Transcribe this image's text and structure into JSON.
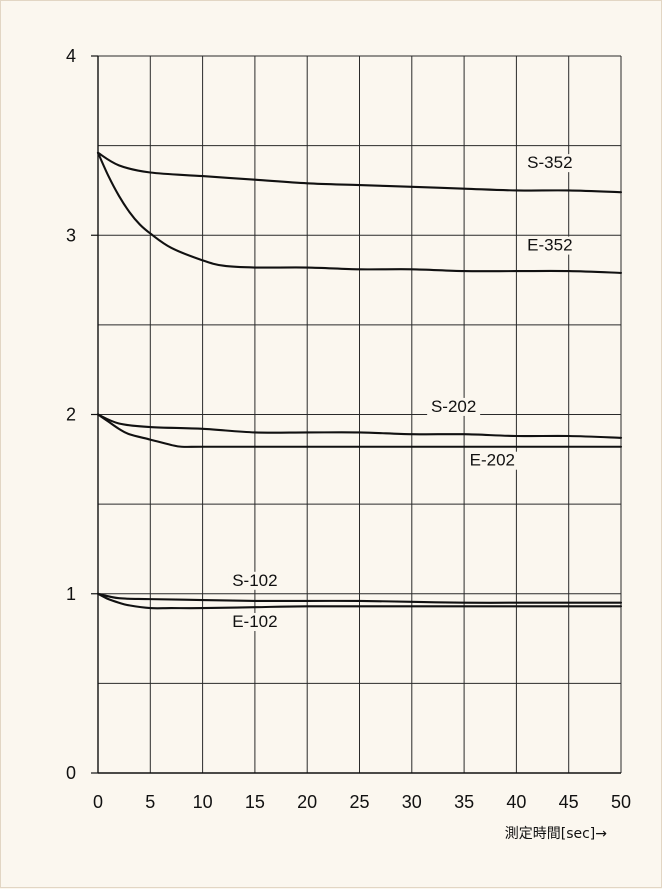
{
  "chart_data": {
    "type": "line",
    "title": "",
    "xlabel": "測定時間[sec]→",
    "ylabel": "",
    "xlim": [
      0,
      50
    ],
    "ylim": [
      0,
      4
    ],
    "x_ticks": [
      "0",
      "5",
      "10",
      "15",
      "20",
      "25",
      "30",
      "35",
      "40",
      "45",
      "50"
    ],
    "y_ticks": [
      "0",
      "1",
      "2",
      "3",
      "4"
    ],
    "grid": true,
    "series": [
      {
        "name": "S-352",
        "x": [
          0,
          2,
          5,
          10,
          15,
          20,
          25,
          30,
          35,
          40,
          45,
          50
        ],
        "y": [
          3.46,
          3.39,
          3.35,
          3.33,
          3.31,
          3.29,
          3.28,
          3.27,
          3.26,
          3.25,
          3.25,
          3.24
        ]
      },
      {
        "name": "E-352",
        "x": [
          0,
          1,
          2,
          3,
          4,
          5,
          7,
          10,
          12,
          15,
          20,
          25,
          30,
          35,
          40,
          45,
          50
        ],
        "y": [
          3.46,
          3.33,
          3.22,
          3.13,
          3.06,
          3.01,
          2.93,
          2.86,
          2.83,
          2.82,
          2.82,
          2.81,
          2.81,
          2.8,
          2.8,
          2.8,
          2.79
        ]
      },
      {
        "name": "S-202",
        "x": [
          0,
          2,
          5,
          10,
          15,
          20,
          25,
          30,
          35,
          40,
          45,
          50
        ],
        "y": [
          2.0,
          1.95,
          1.93,
          1.92,
          1.9,
          1.9,
          1.9,
          1.89,
          1.89,
          1.88,
          1.88,
          1.87
        ]
      },
      {
        "name": "E-202",
        "x": [
          0,
          1,
          2,
          3,
          5,
          7,
          8,
          10,
          15,
          20,
          30,
          40,
          50
        ],
        "y": [
          2.0,
          1.96,
          1.92,
          1.89,
          1.86,
          1.83,
          1.82,
          1.82,
          1.82,
          1.82,
          1.82,
          1.82,
          1.82
        ]
      },
      {
        "name": "S-102",
        "x": [
          0,
          2,
          5,
          10,
          15,
          20,
          25,
          30,
          35,
          40,
          45,
          50
        ],
        "y": [
          1.0,
          0.975,
          0.97,
          0.965,
          0.96,
          0.96,
          0.96,
          0.955,
          0.95,
          0.95,
          0.95,
          0.95
        ]
      },
      {
        "name": "E-102",
        "x": [
          0,
          1,
          2,
          3,
          5,
          7,
          10,
          15,
          20,
          30,
          40,
          50
        ],
        "y": [
          1.0,
          0.97,
          0.95,
          0.935,
          0.92,
          0.92,
          0.92,
          0.925,
          0.93,
          0.93,
          0.93,
          0.93
        ]
      }
    ],
    "series_labels": [
      {
        "text": "S-352",
        "x": 43.2,
        "y": 3.38
      },
      {
        "text": "E-352",
        "x": 43.2,
        "y": 2.92
      },
      {
        "text": "S-202",
        "x": 34.0,
        "y": 2.02
      },
      {
        "text": "E-202",
        "x": 37.7,
        "y": 1.72
      },
      {
        "text": "S-102",
        "x": 15.0,
        "y": 1.05
      },
      {
        "text": "E-102",
        "x": 15.0,
        "y": 0.82
      }
    ]
  }
}
